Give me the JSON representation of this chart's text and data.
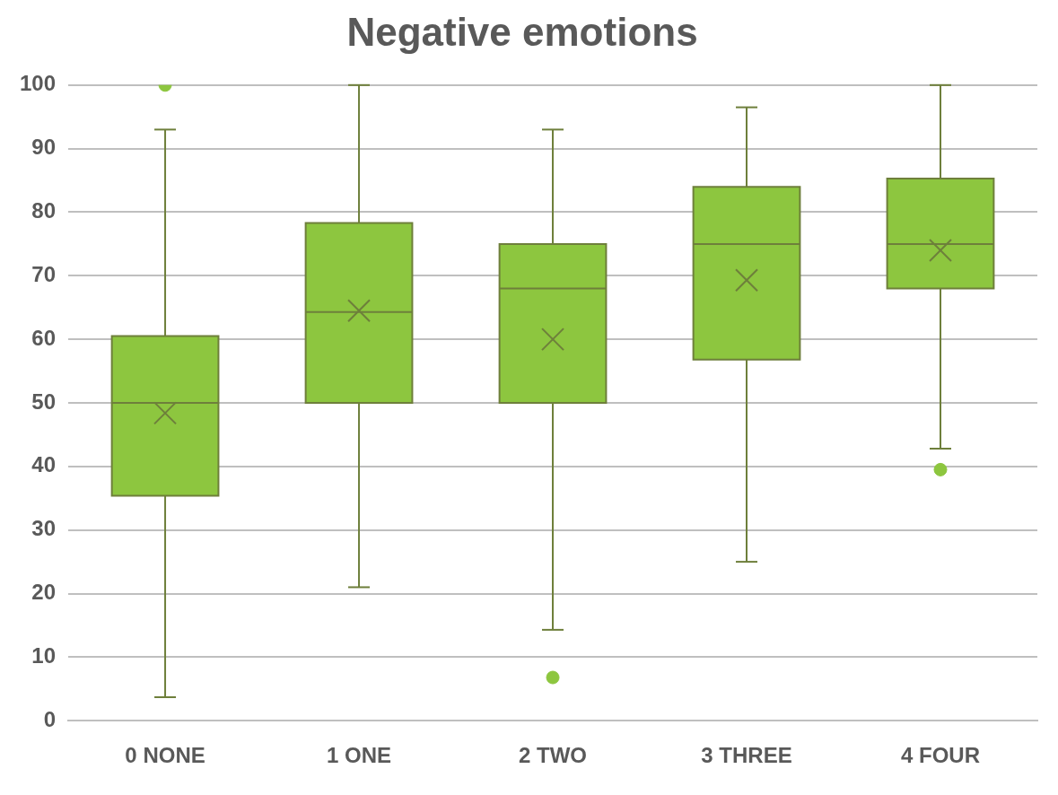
{
  "chart_data": {
    "type": "box",
    "title": "Negative emotions",
    "categories": [
      "0 NONE",
      "1 ONE",
      "2 TWO",
      "3 THREE",
      "4 FOUR"
    ],
    "boxes": [
      {
        "low": 3.7,
        "q1": 35.4,
        "median": 50,
        "q3": 60.5,
        "high": 93,
        "mean": 48.4,
        "outliers": [
          100
        ]
      },
      {
        "low": 21,
        "q1": 50,
        "median": 64.3,
        "q3": 78.3,
        "high": 100,
        "mean": 64.5
      },
      {
        "low": 14.3,
        "q1": 50,
        "median": 68,
        "q3": 75,
        "high": 93,
        "mean": 60,
        "outliers": [
          6.8
        ]
      },
      {
        "low": 25,
        "q1": 56.8,
        "median": 75,
        "q3": 84,
        "high": 96.5,
        "mean": 69.3
      },
      {
        "low": 42.8,
        "q1": 68,
        "median": 75,
        "q3": 85.3,
        "high": 100,
        "mean": 74,
        "outliers": [
          39.5
        ]
      }
    ],
    "color": "#8dc63f",
    "ylim": [
      0,
      100
    ],
    "yticks": [
      0,
      10,
      20,
      30,
      40,
      50,
      60,
      70,
      80,
      90,
      100
    ],
    "grid": "y"
  }
}
